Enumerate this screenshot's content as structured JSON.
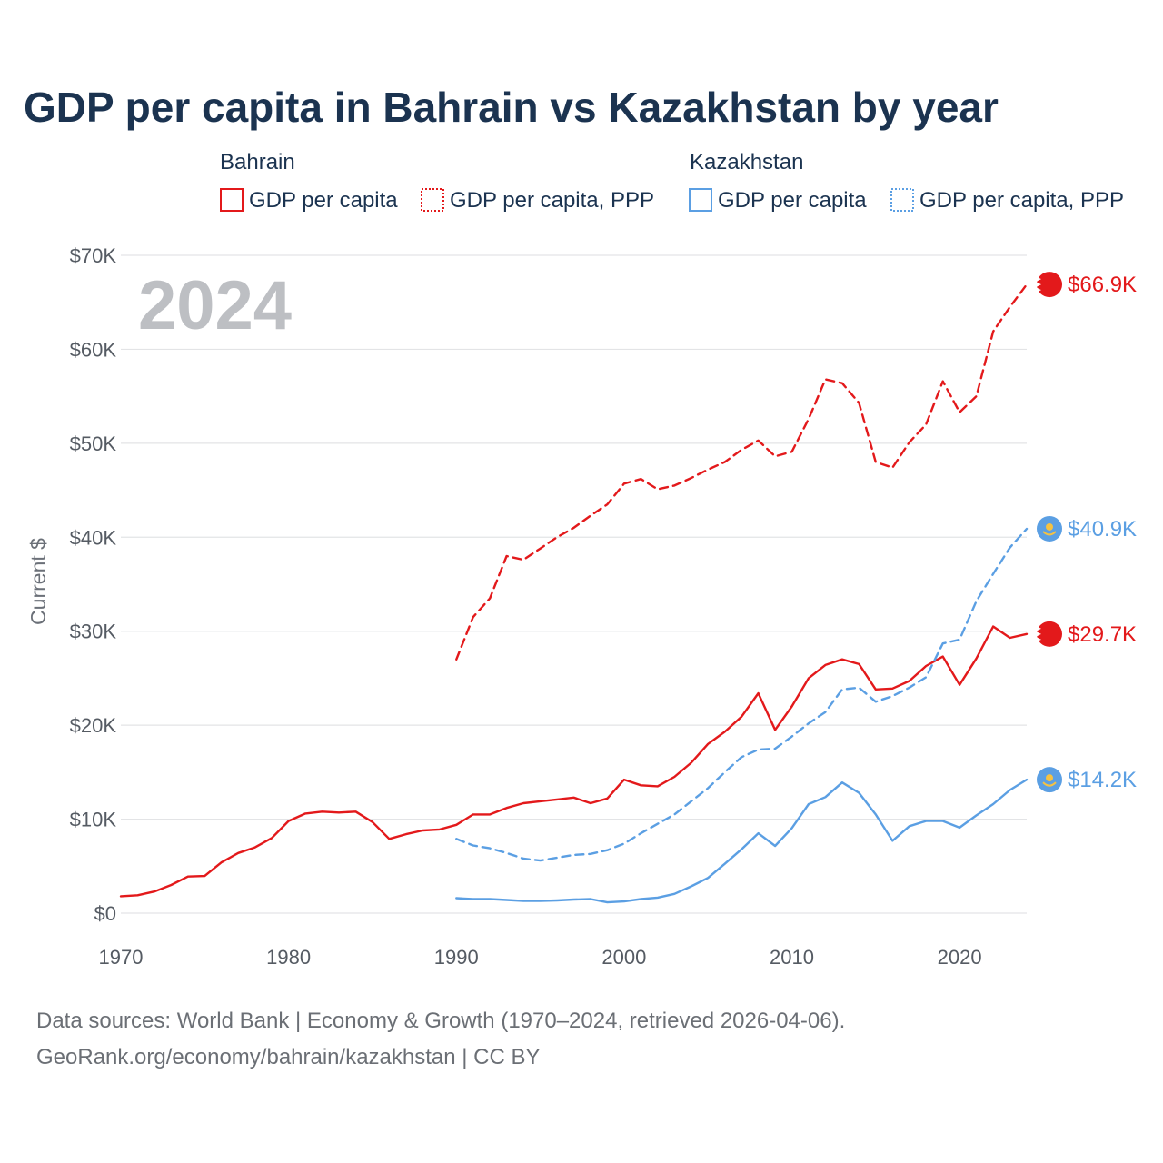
{
  "colors": {
    "bahrain": "#e3191b",
    "kazakhstan": "#5b9fe3",
    "title": "#1b3350",
    "grid": "#e3e4e6",
    "year_watermark": "#bdbfc3"
  },
  "chart_data": {
    "type": "line",
    "title": "GDP per capita in Bahrain vs Kazakhstan by year",
    "ylabel": "Current $",
    "xlabel": "",
    "xlim": [
      1970,
      2024
    ],
    "ylim": [
      0,
      70000
    ],
    "x_ticks": [
      "1970",
      "1980",
      "1990",
      "2000",
      "2010",
      "2020"
    ],
    "y_ticks": [
      "$0",
      "$10K",
      "$20K",
      "$30K",
      "$40K",
      "$50K",
      "$60K",
      "$70K"
    ],
    "current_year_label": "2024",
    "legend": {
      "groups": [
        {
          "country": "Bahrain",
          "items": [
            "GDP per capita",
            "GDP per capita, PPP"
          ]
        },
        {
          "country": "Kazakhstan",
          "items": [
            "GDP per capita",
            "GDP per capita, PPP"
          ]
        }
      ]
    },
    "series": [
      {
        "name": "Bahrain GDP per capita",
        "country": "Bahrain",
        "style": "solid",
        "color": "#e3191b",
        "end_label": "$29.7K",
        "x": [
          1970,
          1971,
          1972,
          1973,
          1974,
          1975,
          1976,
          1977,
          1978,
          1979,
          1980,
          1981,
          1982,
          1983,
          1984,
          1985,
          1986,
          1987,
          1988,
          1989,
          1990,
          1991,
          1992,
          1993,
          1994,
          1995,
          1996,
          1997,
          1998,
          1999,
          2000,
          2001,
          2002,
          2003,
          2004,
          2005,
          2006,
          2007,
          2008,
          2009,
          2010,
          2011,
          2012,
          2013,
          2014,
          2015,
          2016,
          2017,
          2018,
          2019,
          2020,
          2021,
          2022,
          2023,
          2024
        ],
        "values": [
          1800,
          1900,
          2300,
          3000,
          3900,
          3950,
          5400,
          6400,
          7000,
          8000,
          9800,
          10600,
          10800,
          10700,
          10800,
          9700,
          7900,
          8400,
          8800,
          8900,
          9400,
          10500,
          10500,
          11200,
          11700,
          11900,
          12100,
          12300,
          11700,
          12200,
          14200,
          13600,
          13500,
          14500,
          16000,
          18000,
          19300,
          20900,
          23400,
          19500,
          22000,
          25000,
          26400,
          27000,
          26500,
          23800,
          23900,
          24700,
          26300,
          27300,
          24300,
          27100,
          30500,
          29300,
          29700
        ]
      },
      {
        "name": "Bahrain GDP per capita, PPP",
        "country": "Bahrain",
        "style": "dashed",
        "color": "#e3191b",
        "end_label": "$66.9K",
        "x": [
          1990,
          1991,
          1992,
          1993,
          1994,
          1995,
          1996,
          1997,
          1998,
          1999,
          2000,
          2001,
          2002,
          2003,
          2004,
          2005,
          2006,
          2007,
          2008,
          2009,
          2010,
          2011,
          2012,
          2013,
          2014,
          2015,
          2016,
          2017,
          2018,
          2019,
          2020,
          2021,
          2022,
          2023,
          2024
        ],
        "values": [
          27000,
          31500,
          33500,
          38000,
          37600,
          38800,
          40000,
          41000,
          42300,
          43500,
          45700,
          46200,
          45100,
          45500,
          46300,
          47200,
          48000,
          49300,
          50300,
          48600,
          49100,
          52600,
          56800,
          56400,
          54300,
          48000,
          47400,
          50100,
          52000,
          56600,
          53300,
          55000,
          61900,
          64500,
          66900
        ]
      },
      {
        "name": "Kazakhstan GDP per capita",
        "country": "Kazakhstan",
        "style": "solid",
        "color": "#5b9fe3",
        "end_label": "$14.2K",
        "x": [
          1990,
          1991,
          1992,
          1993,
          1994,
          1995,
          1996,
          1997,
          1998,
          1999,
          2000,
          2001,
          2002,
          2003,
          2004,
          2005,
          2006,
          2007,
          2008,
          2009,
          2010,
          2011,
          2012,
          2013,
          2014,
          2015,
          2016,
          2017,
          2018,
          2019,
          2020,
          2021,
          2022,
          2023,
          2024
        ],
        "values": [
          1600,
          1500,
          1500,
          1400,
          1300,
          1300,
          1350,
          1450,
          1500,
          1150,
          1250,
          1500,
          1650,
          2050,
          2850,
          3750,
          5250,
          6800,
          8500,
          7150,
          9050,
          11600,
          12350,
          13900,
          12800,
          10500,
          7700,
          9250,
          9800,
          9800,
          9100,
          10400,
          11600,
          13100,
          14200
        ]
      },
      {
        "name": "Kazakhstan GDP per capita, PPP",
        "country": "Kazakhstan",
        "style": "dashed",
        "color": "#5b9fe3",
        "end_label": "$40.9K",
        "x": [
          1990,
          1991,
          1992,
          1993,
          1994,
          1995,
          1996,
          1997,
          1998,
          1999,
          2000,
          2001,
          2002,
          2003,
          2004,
          2005,
          2006,
          2007,
          2008,
          2009,
          2010,
          2011,
          2012,
          2013,
          2014,
          2015,
          2016,
          2017,
          2018,
          2019,
          2020,
          2021,
          2022,
          2023,
          2024
        ],
        "values": [
          7900,
          7200,
          6900,
          6400,
          5800,
          5600,
          5900,
          6200,
          6300,
          6700,
          7400,
          8500,
          9500,
          10500,
          11900,
          13300,
          15000,
          16600,
          17400,
          17500,
          18800,
          20200,
          21400,
          23800,
          24000,
          22500,
          23100,
          24000,
          25100,
          28700,
          29100,
          33200,
          36100,
          38900,
          40900
        ]
      }
    ]
  },
  "source": {
    "line1": "Data sources: World Bank | Economy & Growth (1970–2024, retrieved 2026-04-06).",
    "line2": "GeoRank.org/economy/bahrain/kazakhstan | CC BY"
  }
}
